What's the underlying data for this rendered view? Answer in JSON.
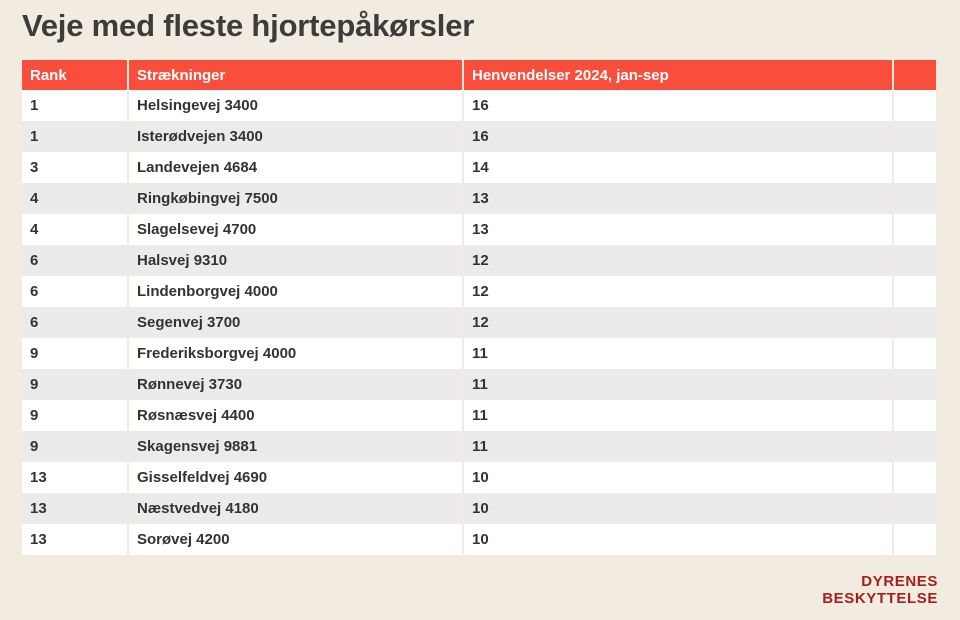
{
  "colors": {
    "page_background": "#f1ecdf",
    "header_background": "#f94e3b",
    "header_text": "#ffffff",
    "row_alt_background": "#ebebeb",
    "body_text": "#333333",
    "title_text": "#3c3c3b",
    "logo_text": "#a81e1e"
  },
  "chart_data": {
    "type": "table",
    "title": "Veje med fleste hjortepåkørsler",
    "columns": [
      "Rank",
      "Strækninger",
      "Henvendelser 2024, jan-sep",
      ""
    ],
    "rows": [
      [
        "1",
        "Helsingevej 3400",
        "16"
      ],
      [
        "1",
        "Isterødvejen 3400",
        "16"
      ],
      [
        "3",
        "Landevejen 4684",
        "14"
      ],
      [
        "4",
        "Ringkøbingvej 7500",
        "13"
      ],
      [
        "4",
        "Slagelsevej 4700",
        "13"
      ],
      [
        "6",
        "Halsvej 9310",
        "12"
      ],
      [
        "6",
        "Lindenborgvej 4000",
        "12"
      ],
      [
        "6",
        "Segenvej 3700",
        "12"
      ],
      [
        "9",
        "Frederiksborgvej 4000",
        "11"
      ],
      [
        "9",
        "Rønnevej 3730",
        "11"
      ],
      [
        "9",
        "Røsnæsvej 4400",
        "11"
      ],
      [
        "9",
        "Skagensvej 9881",
        "11"
      ],
      [
        "13",
        "Gisselfeldvej 4690",
        "10"
      ],
      [
        "13",
        "Næstvedvej 4180",
        "10"
      ],
      [
        "13",
        "Sorøvej 4200",
        "10"
      ]
    ]
  },
  "logo": {
    "line1": "DYRENES",
    "line2": "BESKYTTELSE"
  }
}
